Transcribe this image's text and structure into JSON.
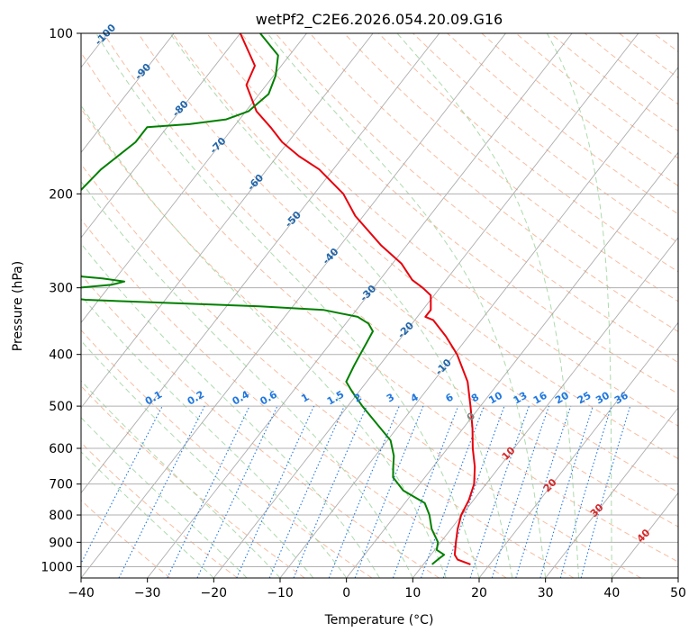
{
  "chart_data": {
    "type": "line",
    "title": "wetPf2_C2E6.2026.054.20.09.G16",
    "xlabel": "Temperature (°C)",
    "ylabel": "Pressure (hPa)",
    "xlim": [
      -40,
      50
    ],
    "ylim": [
      1050,
      100
    ],
    "y_scale": "log",
    "grid": true,
    "x_ticks": [
      -40,
      -30,
      -20,
      -10,
      0,
      10,
      20,
      30,
      40,
      50
    ],
    "y_ticks": [
      100,
      200,
      300,
      400,
      500,
      600,
      700,
      800,
      900,
      1000
    ],
    "colors": {
      "temperature": "#e8000b",
      "dewpoint": "#008000",
      "isotherm": "#999999",
      "dry_adiabat": "#f4a582",
      "moist_adiabat": "#9fd49f",
      "mixing_ratio": "#1f77e0",
      "isotherm_label": "#2166ac",
      "warm_label": "#d62728",
      "zero_label": "#7f7f7f"
    },
    "series": [
      {
        "key": "temperature",
        "color": "#e8000b",
        "points": [
          {
            "p": 990,
            "t": 17.1
          },
          {
            "p": 970,
            "t": 14.6
          },
          {
            "p": 950,
            "t": 13.6
          },
          {
            "p": 900,
            "t": 12.3
          },
          {
            "p": 850,
            "t": 11.0
          },
          {
            "p": 800,
            "t": 9.9
          },
          {
            "p": 750,
            "t": 9.3
          },
          {
            "p": 700,
            "t": 8.2
          },
          {
            "p": 650,
            "t": 6.3
          },
          {
            "p": 600,
            "t": 3.8
          },
          {
            "p": 550,
            "t": 1.4
          },
          {
            "p": 500,
            "t": -1.5
          },
          {
            "p": 450,
            "t": -4.8
          },
          {
            "p": 400,
            "t": -9.6
          },
          {
            "p": 370,
            "t": -13.4
          },
          {
            "p": 345,
            "t": -17.2
          },
          {
            "p": 340,
            "t": -18.8
          },
          {
            "p": 330,
            "t": -18.8
          },
          {
            "p": 310,
            "t": -20.5
          },
          {
            "p": 300,
            "t": -22.6
          },
          {
            "p": 290,
            "t": -25.1
          },
          {
            "p": 270,
            "t": -28.7
          },
          {
            "p": 250,
            "t": -33.8
          },
          {
            "p": 220,
            "t": -41.2
          },
          {
            "p": 200,
            "t": -45.6
          },
          {
            "p": 180,
            "t": -52.1
          },
          {
            "p": 170,
            "t": -56.7
          },
          {
            "p": 160,
            "t": -60.9
          },
          {
            "p": 150,
            "t": -64.4
          },
          {
            "p": 140,
            "t": -68.4
          },
          {
            "p": 125,
            "t": -73.0
          },
          {
            "p": 115,
            "t": -74.0
          },
          {
            "p": 100,
            "t": -80.0
          }
        ]
      },
      {
        "key": "dewpoint",
        "color": "#008000",
        "points": [
          {
            "p": 990,
            "t": 11.3
          },
          {
            "p": 970,
            "t": 11.6
          },
          {
            "p": 950,
            "t": 12.0
          },
          {
            "p": 930,
            "t": 10.3
          },
          {
            "p": 900,
            "t": 9.6
          },
          {
            "p": 850,
            "t": 7.1
          },
          {
            "p": 800,
            "t": 5.1
          },
          {
            "p": 760,
            "t": 3.0
          },
          {
            "p": 720,
            "t": -1.7
          },
          {
            "p": 680,
            "t": -4.8
          },
          {
            "p": 650,
            "t": -6.0
          },
          {
            "p": 620,
            "t": -7.2
          },
          {
            "p": 580,
            "t": -9.5
          },
          {
            "p": 540,
            "t": -13.5
          },
          {
            "p": 500,
            "t": -17.8
          },
          {
            "p": 470,
            "t": -21.0
          },
          {
            "p": 450,
            "t": -23.1
          },
          {
            "p": 420,
            "t": -23.8
          },
          {
            "p": 400,
            "t": -24.2
          },
          {
            "p": 380,
            "t": -24.6
          },
          {
            "p": 362,
            "t": -25.0
          },
          {
            "p": 350,
            "t": -26.6
          },
          {
            "p": 340,
            "t": -29.0
          },
          {
            "p": 330,
            "t": -35.0
          },
          {
            "p": 325,
            "t": -45.0
          },
          {
            "p": 320,
            "t": -60.0
          },
          {
            "p": 316,
            "t": -72.0
          },
          {
            "p": 310,
            "t": -78.0
          },
          {
            "p": 303,
            "t": -76.5
          },
          {
            "p": 300,
            "t": -74.6
          },
          {
            "p": 296,
            "t": -69.8
          },
          {
            "p": 292,
            "t": -68.3
          },
          {
            "p": 288,
            "t": -72.0
          },
          {
            "p": 284,
            "t": -78.0
          },
          {
            "p": 278,
            "t": -83.0
          },
          {
            "p": 230,
            "t": -86.0
          },
          {
            "p": 215,
            "t": -86.0
          },
          {
            "p": 200,
            "t": -85.7
          },
          {
            "p": 180,
            "t": -85.0
          },
          {
            "p": 160,
            "t": -83.0
          },
          {
            "p": 150,
            "t": -83.0
          },
          {
            "p": 148,
            "t": -77.0
          },
          {
            "p": 145,
            "t": -72.0
          },
          {
            "p": 140,
            "t": -69.6
          },
          {
            "p": 130,
            "t": -68.6
          },
          {
            "p": 120,
            "t": -69.7
          },
          {
            "p": 110,
            "t": -71.7
          },
          {
            "p": 100,
            "t": -77.0
          }
        ]
      }
    ],
    "isotherm_labels": [
      "-100",
      "-90",
      "-80",
      "-70",
      "-60",
      "-50",
      "-40",
      "-30",
      "-20",
      "-10"
    ],
    "warm_isotherm_labels": [
      "0",
      "10",
      "20",
      "30",
      "40"
    ],
    "mixing_ratio_labels": [
      "0.1",
      "0.2",
      "0.4",
      "0.6",
      "1",
      "1.5",
      "2",
      "3",
      "4",
      "6",
      "8",
      "10",
      "13",
      "16",
      "20",
      "25",
      "30",
      "36"
    ]
  }
}
